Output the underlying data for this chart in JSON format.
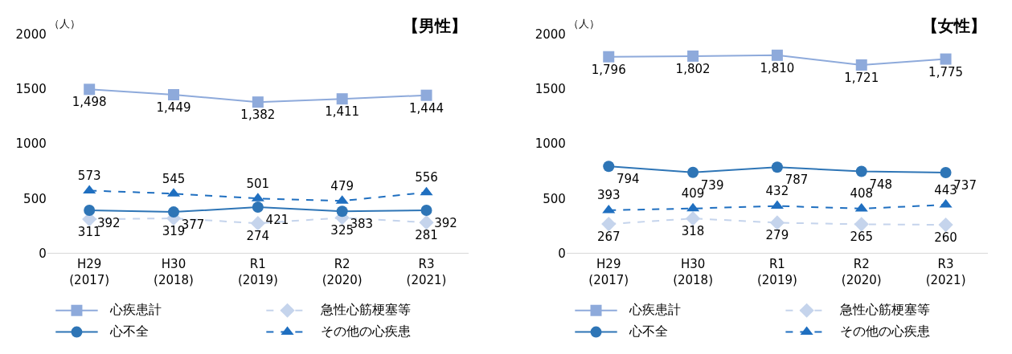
{
  "chart_data": [
    {
      "type": "line",
      "title": "【男性】",
      "ylabel": "（人）",
      "categories": [
        "H29\n(2017)",
        "H30\n(2018)",
        "R1\n(2019)",
        "R2\n(2020)",
        "R3\n(2021)"
      ],
      "ylim": [
        0,
        2000
      ],
      "yticks": [
        0,
        500,
        1000,
        1500,
        2000
      ],
      "grid": false,
      "legend": "bottom",
      "data_labels": true,
      "series": [
        {
          "name": "心疾患計",
          "color": "#8eaadb",
          "marker": "square",
          "line_style": "solid",
          "values": [
            1498,
            1449,
            1382,
            1411,
            1444
          ],
          "value_labels": [
            "1,498",
            "1,449",
            "1,382",
            "1,411",
            "1,444"
          ]
        },
        {
          "name": "急性心筋梗塞等",
          "color": "#c5d4ec",
          "marker": "diamond",
          "line_style": "dashed",
          "values": [
            311,
            319,
            274,
            325,
            281
          ]
        },
        {
          "name": "心不全",
          "color": "#2e75b6",
          "marker": "circle",
          "line_style": "solid",
          "values": [
            392,
            377,
            421,
            383,
            392
          ]
        },
        {
          "name": "その他の心疾患",
          "color": "#1f6fc0",
          "marker": "triangle",
          "line_style": "dashed",
          "values": [
            573,
            545,
            501,
            479,
            556
          ]
        }
      ]
    },
    {
      "type": "line",
      "title": "【女性】",
      "ylabel": "（人）",
      "categories": [
        "H29\n(2017)",
        "H30\n(2018)",
        "R1\n(2019)",
        "R2\n(2020)",
        "R3\n(2021)"
      ],
      "ylim": [
        0,
        2000
      ],
      "yticks": [
        0,
        500,
        1000,
        1500,
        2000
      ],
      "grid": false,
      "legend": "bottom",
      "data_labels": true,
      "series": [
        {
          "name": "心疾患計",
          "color": "#8eaadb",
          "marker": "square",
          "line_style": "solid",
          "values": [
            1796,
            1802,
            1810,
            1721,
            1775
          ],
          "value_labels": [
            "1,796",
            "1,802",
            "1,810",
            "1,721",
            "1,775"
          ]
        },
        {
          "name": "急性心筋梗塞等",
          "color": "#c5d4ec",
          "marker": "diamond",
          "line_style": "dashed",
          "values": [
            267,
            318,
            279,
            265,
            260
          ]
        },
        {
          "name": "心不全",
          "color": "#2e75b6",
          "marker": "circle",
          "line_style": "solid",
          "values": [
            794,
            739,
            787,
            748,
            737
          ]
        },
        {
          "name": "その他の心疾患",
          "color": "#1f6fc0",
          "marker": "triangle",
          "line_style": "dashed",
          "values": [
            393,
            409,
            432,
            408,
            443
          ]
        }
      ]
    }
  ]
}
